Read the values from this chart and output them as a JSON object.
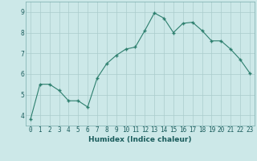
{
  "x": [
    0,
    1,
    2,
    3,
    4,
    5,
    6,
    7,
    8,
    9,
    10,
    11,
    12,
    13,
    14,
    15,
    16,
    17,
    18,
    19,
    20,
    21,
    22,
    23
  ],
  "y": [
    3.8,
    5.5,
    5.5,
    5.2,
    4.7,
    4.7,
    4.4,
    5.8,
    6.5,
    6.9,
    7.2,
    7.3,
    8.1,
    8.95,
    8.7,
    8.0,
    8.45,
    8.5,
    8.1,
    7.6,
    7.6,
    7.2,
    6.7,
    6.05
  ],
  "xlabel": "Humidex (Indice chaleur)",
  "ylim": [
    3.5,
    9.5
  ],
  "xlim": [
    -0.5,
    23.5
  ],
  "yticks": [
    4,
    5,
    6,
    7,
    8,
    9
  ],
  "xtick_labels": [
    "0",
    "1",
    "2",
    "3",
    "4",
    "5",
    "6",
    "7",
    "8",
    "9",
    "10",
    "11",
    "12",
    "13",
    "14",
    "15",
    "16",
    "17",
    "18",
    "19",
    "20",
    "21",
    "22",
    "23"
  ],
  "line_color": "#2d7f6e",
  "marker_color": "#2d7f6e",
  "bg_color": "#cce8e8",
  "grid_color": "#aacccc"
}
